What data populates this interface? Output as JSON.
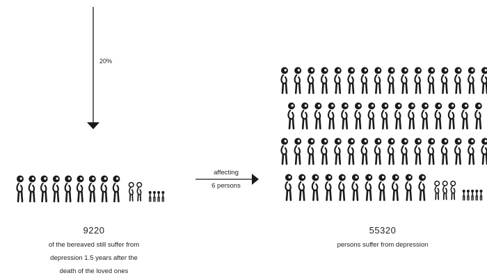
{
  "percent_label": "20%",
  "arrow_label_line1": "affecting",
  "arrow_label_line2": "6 persons",
  "left": {
    "number": "9220",
    "caption_line1": "of the bereaved still suffer from",
    "caption_line2": "depression 1.5 years after the",
    "caption_line3": "death of the loved ones",
    "icons": {
      "full": 9,
      "half": 2,
      "tiny": 4
    }
  },
  "right": {
    "number": "55320",
    "caption_line1": "persons suffer from depression",
    "icons": {
      "full": 58,
      "half": 3,
      "tiny": 5
    }
  },
  "colors": {
    "ink": "#1a1a1a",
    "text": "#222222"
  }
}
